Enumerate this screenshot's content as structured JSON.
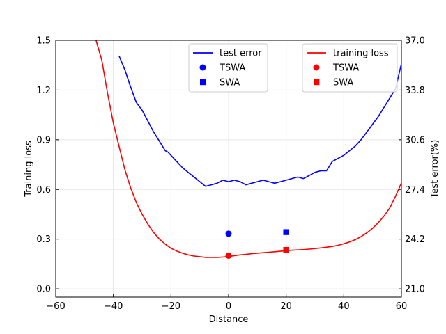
{
  "chart_data": {
    "type": "line",
    "xlabel": "Distance",
    "ylabel_left": "Training loss",
    "ylabel_right": "Test error(%)",
    "xlim": [
      -60,
      60
    ],
    "ylim_left": [
      -0.05,
      1.5
    ],
    "ylim_right": [
      21.0,
      37.0
    ],
    "xticks": [
      -60,
      -40,
      -20,
      0,
      20,
      40,
      60
    ],
    "xtick_labels": [
      "−60",
      "−40",
      "−20",
      "0",
      "20",
      "40",
      "60"
    ],
    "yticks_left": [
      0.0,
      0.3,
      0.6,
      0.9,
      1.2,
      1.5
    ],
    "ytick_labels_left": [
      "0.0",
      "0.3",
      "0.6",
      "0.9",
      "1.2",
      "1.5"
    ],
    "yticks_right": [
      21.0,
      24.2,
      27.4,
      30.6,
      33.8,
      37.0
    ],
    "ytick_labels_right": [
      "21.0",
      "24.2",
      "27.4",
      "30.6",
      "33.8",
      "37.0"
    ],
    "grid": true,
    "series": [
      {
        "name": "test error",
        "axis": "right",
        "color": "#0000ff",
        "x": [
          -38,
          -36,
          -34,
          -32,
          -30,
          -28,
          -26,
          -24,
          -22,
          -21,
          -20,
          -18,
          -16,
          -14,
          -12,
          -10,
          -8,
          -6,
          -4,
          -2,
          0,
          2,
          4,
          6,
          8,
          10,
          12,
          14,
          16,
          18,
          20,
          22,
          24,
          26,
          28,
          30,
          32,
          34,
          36,
          38,
          40,
          42,
          44,
          46,
          48,
          50,
          52,
          54,
          56,
          58,
          60
        ],
        "y": [
          36.0,
          35.1,
          34.0,
          33.0,
          32.5,
          31.8,
          31.1,
          30.5,
          29.9,
          29.8,
          29.6,
          29.2,
          28.8,
          28.5,
          28.2,
          27.9,
          27.6,
          27.7,
          27.8,
          28.0,
          27.9,
          28.0,
          27.9,
          27.7,
          27.8,
          27.9,
          28.0,
          27.9,
          27.8,
          27.9,
          28.0,
          28.1,
          28.2,
          28.1,
          28.3,
          28.5,
          28.6,
          28.6,
          29.2,
          29.4,
          29.6,
          29.9,
          30.2,
          30.6,
          31.1,
          31.6,
          32.1,
          32.7,
          33.3,
          33.9,
          35.5
        ]
      },
      {
        "name": "training loss",
        "axis": "left",
        "color": "#ff0000",
        "x": [
          -46,
          -44,
          -42,
          -40,
          -38,
          -36,
          -34,
          -32,
          -30,
          -28,
          -26,
          -24,
          -22,
          -20,
          -18,
          -16,
          -14,
          -12,
          -10,
          -8,
          -6,
          -4,
          -2,
          0,
          2,
          4,
          6,
          8,
          10,
          12,
          14,
          16,
          18,
          20,
          22,
          24,
          26,
          28,
          30,
          32,
          34,
          36,
          38,
          40,
          42,
          44,
          46,
          48,
          50,
          52,
          54,
          56,
          58,
          60
        ],
        "y": [
          1.5,
          1.38,
          1.18,
          1.0,
          0.86,
          0.72,
          0.61,
          0.52,
          0.45,
          0.39,
          0.34,
          0.3,
          0.27,
          0.245,
          0.228,
          0.215,
          0.205,
          0.198,
          0.194,
          0.19,
          0.19,
          0.19,
          0.192,
          0.195,
          0.2,
          0.205,
          0.208,
          0.212,
          0.215,
          0.218,
          0.221,
          0.224,
          0.227,
          0.23,
          0.233,
          0.235,
          0.237,
          0.24,
          0.243,
          0.247,
          0.251,
          0.256,
          0.263,
          0.272,
          0.283,
          0.297,
          0.315,
          0.338,
          0.366,
          0.4,
          0.44,
          0.49,
          0.56,
          0.64
        ]
      }
    ],
    "markers": [
      {
        "name": "TSWA",
        "series": "test error",
        "shape": "circle",
        "x": 0,
        "y": 24.55,
        "color": "#0000ff"
      },
      {
        "name": "SWA",
        "series": "test error",
        "shape": "square",
        "x": 20,
        "y": 24.65,
        "color": "#0000ff"
      },
      {
        "name": "TSWA",
        "series": "training loss",
        "shape": "circle",
        "x": 0,
        "y": 0.2,
        "color": "#ff0000"
      },
      {
        "name": "SWA",
        "series": "training loss",
        "shape": "square",
        "x": 20,
        "y": 0.235,
        "color": "#ff0000"
      }
    ],
    "legends": [
      {
        "placement": "top-center",
        "entries": [
          {
            "label": "test error",
            "kind": "line",
            "color": "#0000ff"
          },
          {
            "label": "TSWA",
            "kind": "circle",
            "color": "#0000ff"
          },
          {
            "label": "SWA",
            "kind": "square",
            "color": "#0000ff"
          }
        ]
      },
      {
        "placement": "top-right",
        "entries": [
          {
            "label": "training loss",
            "kind": "line",
            "color": "#ff0000"
          },
          {
            "label": "TSWA",
            "kind": "circle",
            "color": "#ff0000"
          },
          {
            "label": "SWA",
            "kind": "square",
            "color": "#ff0000"
          }
        ]
      }
    ]
  }
}
